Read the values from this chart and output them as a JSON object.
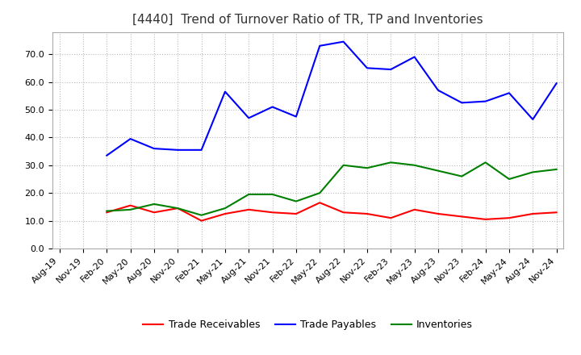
{
  "title": "[4440]  Trend of Turnover Ratio of TR, TP and Inventories",
  "ylim": [
    0.0,
    78.0
  ],
  "yticks": [
    0.0,
    10.0,
    20.0,
    30.0,
    40.0,
    50.0,
    60.0,
    70.0
  ],
  "x_labels": [
    "Aug-19",
    "Nov-19",
    "Feb-20",
    "May-20",
    "Aug-20",
    "Nov-20",
    "Feb-21",
    "May-21",
    "Aug-21",
    "Nov-21",
    "Feb-22",
    "May-22",
    "Aug-22",
    "Nov-22",
    "Feb-23",
    "May-23",
    "Aug-23",
    "Nov-23",
    "Feb-24",
    "May-24",
    "Aug-24",
    "Nov-24"
  ],
  "trade_receivables": [
    null,
    null,
    13.0,
    15.5,
    13.0,
    14.5,
    10.0,
    12.5,
    14.0,
    13.0,
    12.5,
    16.5,
    13.0,
    12.5,
    11.0,
    14.0,
    12.5,
    11.5,
    10.5,
    11.0,
    12.5,
    13.0
  ],
  "trade_payables": [
    null,
    null,
    33.5,
    39.5,
    36.0,
    35.5,
    35.5,
    56.5,
    47.0,
    51.0,
    47.5,
    73.0,
    74.5,
    65.0,
    64.5,
    69.0,
    57.0,
    52.5,
    53.0,
    56.0,
    46.5,
    59.5
  ],
  "inventories": [
    null,
    null,
    13.5,
    14.0,
    16.0,
    14.5,
    12.0,
    14.5,
    19.5,
    19.5,
    17.0,
    20.0,
    30.0,
    29.0,
    31.0,
    30.0,
    28.0,
    26.0,
    31.0,
    25.0,
    27.5,
    28.5
  ],
  "tr_color": "#ff0000",
  "tp_color": "#0000ff",
  "inv_color": "#008000",
  "background_color": "#ffffff",
  "grid_color": "#bbbbbb",
  "title_fontsize": 11,
  "legend_fontsize": 9,
  "tick_fontsize": 8
}
